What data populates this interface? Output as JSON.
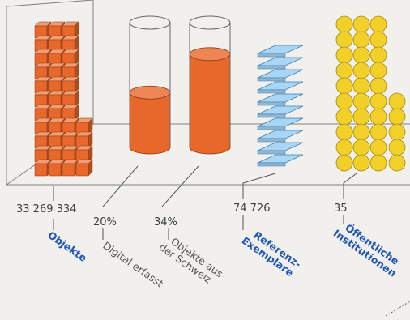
{
  "colors": {
    "background": "#f2f0ec",
    "frame": "#7f7f7f",
    "cube": "#e8672b",
    "liquid": "#e8672b",
    "slab": "#a9d6f5",
    "coin": "#f1d02a",
    "label_bold": "#1f56b8",
    "label_plain": "#555555"
  },
  "chart_data": {
    "type": "infographic",
    "items": [
      {
        "key": "objects",
        "value": "33 269 334",
        "label": [
          "Objekte"
        ],
        "bold": true,
        "icon": "cube-stack-icon"
      },
      {
        "key": "digital",
        "value": "20%",
        "fraction": 0.2,
        "label": [
          "Digital erfasst"
        ],
        "bold": false,
        "icon": "cylinder-icon"
      },
      {
        "key": "swiss",
        "value": "34%",
        "fraction": 0.34,
        "label": [
          "Objekte aus",
          "der Schweiz"
        ],
        "bold": false,
        "icon": "cylinder-icon"
      },
      {
        "key": "reference",
        "value": "74 726",
        "label": [
          "Referenz-",
          "Exemplare"
        ],
        "bold": true,
        "icon": "slab-stack-icon"
      },
      {
        "key": "institutions",
        "value": "35",
        "count": 35,
        "label": [
          "Öffentliche",
          "Institutionen"
        ],
        "bold": true,
        "icon": "coin-stack-icon"
      }
    ]
  }
}
